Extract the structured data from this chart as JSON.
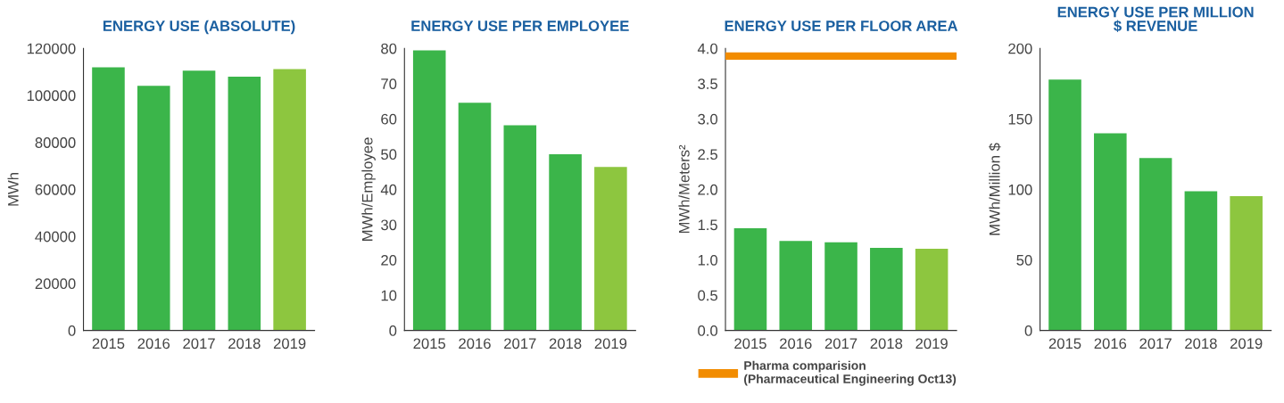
{
  "chart_data": [
    {
      "type": "bar",
      "title": "ENERGY USE (ABSOLUTE)",
      "ylabel": "MWh",
      "categories": [
        "2015",
        "2016",
        "2017",
        "2018",
        "2019"
      ],
      "values": [
        111900,
        104100,
        110500,
        108000,
        111200
      ],
      "colors": [
        "#3bb54a",
        "#3bb54a",
        "#3bb54a",
        "#3bb54a",
        "#8dc63f"
      ],
      "ylim": [
        0,
        120000
      ],
      "yticks": [
        0,
        20000,
        40000,
        60000,
        80000,
        100000,
        120000
      ],
      "grid": false
    },
    {
      "type": "bar",
      "title": "ENERGY USE PER EMPLOYEE",
      "ylabel": "MWh/Employee",
      "categories": [
        "2015",
        "2016",
        "2017",
        "2018",
        "2019"
      ],
      "values": [
        79.4,
        64.6,
        58.2,
        50.0,
        46.4
      ],
      "colors": [
        "#3bb54a",
        "#3bb54a",
        "#3bb54a",
        "#3bb54a",
        "#8dc63f"
      ],
      "ylim": [
        0,
        80
      ],
      "yticks": [
        0,
        10,
        20,
        30,
        40,
        50,
        60,
        70,
        80
      ],
      "grid": false
    },
    {
      "type": "bar",
      "title": "ENERGY USE PER FLOOR AREA",
      "ylabel": "MWh/Meters²",
      "categories": [
        "2015",
        "2016",
        "2017",
        "2018",
        "2019"
      ],
      "values": [
        1.45,
        1.27,
        1.25,
        1.17,
        1.16
      ],
      "colors": [
        "#3bb54a",
        "#3bb54a",
        "#3bb54a",
        "#3bb54a",
        "#8dc63f"
      ],
      "ylim": [
        0,
        4.0
      ],
      "yticks": [
        {
          "value": 0,
          "label": "0.0"
        },
        0.5,
        {
          "value": 1,
          "label": "1.0"
        },
        1.5,
        {
          "value": 2,
          "label": "2.0"
        },
        2.5,
        {
          "value": 3,
          "label": "3.0"
        },
        3.5,
        {
          "value": 4,
          "label": "4.0"
        }
      ],
      "grid": false,
      "ref_lines": [
        {
          "axis": "y",
          "value": 3.89,
          "label": "Pharma comparision\n(Pharmaceutical Engineering Oct13)",
          "color": "#f28c00"
        }
      ],
      "legend": "bottom"
    },
    {
      "type": "bar",
      "title": "ENERGY USE PER MILLION\n$ REVENUE",
      "ylabel": "MWh/Million $",
      "categories": [
        "2015",
        "2016",
        "2017",
        "2018",
        "2019"
      ],
      "values": [
        177.9,
        139.8,
        122.2,
        98.7,
        95.2
      ],
      "colors": [
        "#3bb54a",
        "#3bb54a",
        "#3bb54a",
        "#3bb54a",
        "#8dc63f"
      ],
      "ylim": [
        0,
        200
      ],
      "yticks": [
        0,
        50,
        100,
        150,
        200
      ],
      "grid": false
    }
  ]
}
